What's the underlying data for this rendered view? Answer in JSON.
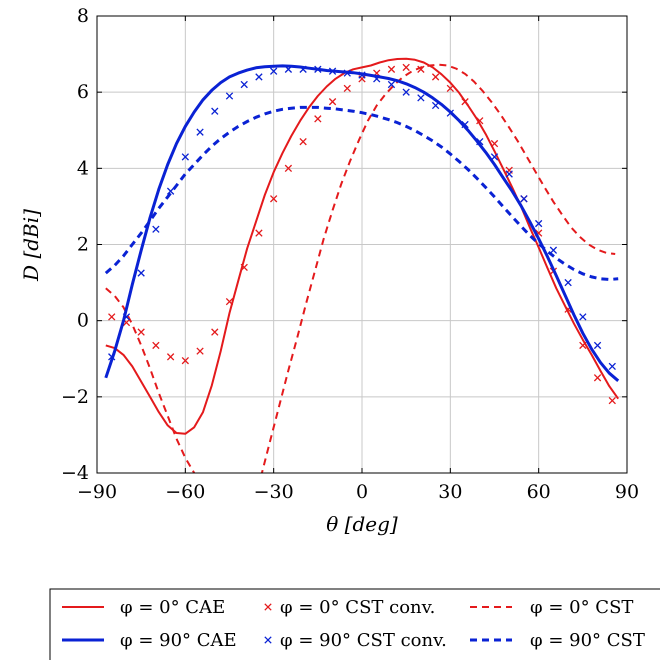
{
  "chart_data": {
    "type": "line",
    "xlabel": "θ [deg]",
    "ylabel": "D [dBi]",
    "xlim": [
      -90,
      90
    ],
    "ylim": [
      -4,
      8
    ],
    "xticks": [
      -90,
      -60,
      -30,
      0,
      30,
      60,
      90
    ],
    "yticks": [
      -4,
      -2,
      0,
      2,
      4,
      6,
      8
    ],
    "xtick_labels": [
      "−90",
      "−60",
      "−30",
      "0",
      "30",
      "60",
      "90"
    ],
    "ytick_labels": [
      "−4",
      "−2",
      "0",
      "2",
      "4",
      "6",
      "8"
    ],
    "grid": true,
    "legend_position": "bottom",
    "series": [
      {
        "name": "φ = 0° CAE",
        "style": "solid",
        "color": "#e41a1c",
        "width": 2,
        "x": [
          -87,
          -84,
          -81,
          -78,
          -75,
          -72,
          -69,
          -66,
          -63,
          -60,
          -57,
          -54,
          -51,
          -48,
          -45,
          -42,
          -39,
          -36,
          -33,
          -30,
          -27,
          -24,
          -21,
          -18,
          -15,
          -12,
          -9,
          -6,
          -3,
          0,
          3,
          6,
          9,
          12,
          15,
          18,
          21,
          24,
          27,
          30,
          33,
          36,
          39,
          42,
          45,
          48,
          51,
          54,
          57,
          60,
          63,
          66,
          69,
          72,
          75,
          78,
          81,
          84,
          87
        ],
        "y": [
          -0.65,
          -0.72,
          -0.9,
          -1.2,
          -1.6,
          -2.0,
          -2.4,
          -2.75,
          -2.95,
          -2.97,
          -2.8,
          -2.4,
          -1.7,
          -0.8,
          0.2,
          1.05,
          1.9,
          2.6,
          3.3,
          3.9,
          4.4,
          4.85,
          5.25,
          5.6,
          5.9,
          6.15,
          6.35,
          6.5,
          6.6,
          6.65,
          6.7,
          6.78,
          6.84,
          6.87,
          6.88,
          6.85,
          6.78,
          6.65,
          6.47,
          6.25,
          5.98,
          5.65,
          5.3,
          4.9,
          4.45,
          3.98,
          3.5,
          3.0,
          2.45,
          1.92,
          1.38,
          0.85,
          0.38,
          -0.08,
          -0.5,
          -0.9,
          -1.32,
          -1.72,
          -2.05
        ]
      },
      {
        "name": "φ = 0° CST conv.",
        "style": "marker",
        "color": "#e41a1c",
        "x": [
          -85,
          -80,
          -75,
          -70,
          -65,
          -60,
          -55,
          -50,
          -45,
          -40,
          -35,
          -30,
          -25,
          -20,
          -15,
          -10,
          -5,
          0,
          5,
          10,
          15,
          20,
          25,
          30,
          35,
          40,
          45,
          50,
          55,
          60,
          65,
          70,
          75,
          80,
          85
        ],
        "y": [
          0.1,
          -0.05,
          -0.3,
          -0.65,
          -0.95,
          -1.05,
          -0.8,
          -0.3,
          0.5,
          1.4,
          2.3,
          3.2,
          4.0,
          4.7,
          5.3,
          5.75,
          6.1,
          6.35,
          6.5,
          6.6,
          6.65,
          6.6,
          6.4,
          6.1,
          5.75,
          5.25,
          4.65,
          3.95,
          3.2,
          2.3,
          1.3,
          0.3,
          -0.65,
          -1.5,
          -2.1
        ]
      },
      {
        "name": "φ = 0° CST",
        "style": "dashed",
        "color": "#e41a1c",
        "width": 2,
        "x": [
          -87,
          -84,
          -81,
          -78,
          -75,
          -72,
          -69,
          -66,
          -63,
          -60,
          -57,
          -34,
          -31,
          -28,
          -25,
          -22,
          -19,
          -16,
          -13,
          -10,
          -7,
          -4,
          -1,
          2,
          5,
          8,
          11,
          14,
          17,
          20,
          23,
          26,
          29,
          32,
          35,
          38,
          41,
          44,
          47,
          50,
          53,
          56,
          59,
          62,
          65,
          68,
          71,
          74,
          77,
          80,
          83,
          86
        ],
        "y": [
          0.85,
          0.65,
          0.35,
          -0.1,
          -0.65,
          -1.25,
          -1.9,
          -2.5,
          -3.1,
          -3.6,
          -4.0,
          -4.0,
          -3.1,
          -2.2,
          -1.3,
          -0.45,
          0.45,
          1.3,
          2.15,
          2.9,
          3.6,
          4.2,
          4.75,
          5.25,
          5.65,
          5.95,
          6.2,
          6.4,
          6.55,
          6.65,
          6.7,
          6.72,
          6.7,
          6.62,
          6.48,
          6.28,
          6.03,
          5.74,
          5.42,
          5.07,
          4.7,
          4.3,
          3.9,
          3.5,
          3.12,
          2.78,
          2.45,
          2.2,
          2.0,
          1.86,
          1.78,
          1.75
        ]
      },
      {
        "name": "φ = 90° CAE",
        "style": "solid",
        "color": "#0a22d4",
        "width": 3,
        "x": [
          -87,
          -84,
          -81,
          -78,
          -75,
          -72,
          -69,
          -66,
          -63,
          -60,
          -57,
          -54,
          -51,
          -48,
          -45,
          -42,
          -39,
          -36,
          -33,
          -30,
          -27,
          -24,
          -21,
          -18,
          -15,
          -12,
          -9,
          -6,
          -3,
          0,
          3,
          6,
          9,
          12,
          15,
          18,
          21,
          24,
          27,
          30,
          33,
          36,
          39,
          42,
          45,
          48,
          51,
          54,
          57,
          60,
          63,
          66,
          69,
          72,
          75,
          78,
          81,
          84,
          87
        ],
        "y": [
          -1.5,
          -0.8,
          0.0,
          0.95,
          1.85,
          2.7,
          3.45,
          4.1,
          4.65,
          5.1,
          5.48,
          5.8,
          6.05,
          6.25,
          6.4,
          6.5,
          6.58,
          6.64,
          6.67,
          6.68,
          6.69,
          6.68,
          6.66,
          6.63,
          6.6,
          6.57,
          6.55,
          6.53,
          6.51,
          6.48,
          6.44,
          6.4,
          6.36,
          6.3,
          6.22,
          6.12,
          6.0,
          5.85,
          5.68,
          5.48,
          5.25,
          5.0,
          4.72,
          4.42,
          4.1,
          3.75,
          3.4,
          3.02,
          2.6,
          2.15,
          1.68,
          1.18,
          0.66,
          0.15,
          -0.33,
          -0.75,
          -1.1,
          -1.38,
          -1.58
        ]
      },
      {
        "name": "φ = 90° CST conv.",
        "style": "marker",
        "color": "#0a22d4",
        "x": [
          -85,
          -80,
          -75,
          -70,
          -65,
          -60,
          -55,
          -50,
          -45,
          -40,
          -35,
          -30,
          -25,
          -20,
          -15,
          -10,
          -5,
          0,
          5,
          10,
          15,
          20,
          25,
          30,
          35,
          40,
          45,
          50,
          55,
          60,
          65,
          70,
          75,
          80,
          85
        ],
        "y": [
          -0.95,
          0.1,
          1.25,
          2.4,
          3.4,
          4.3,
          4.95,
          5.5,
          5.9,
          6.2,
          6.4,
          6.55,
          6.6,
          6.6,
          6.6,
          6.55,
          6.5,
          6.45,
          6.35,
          6.2,
          6.0,
          5.85,
          5.65,
          5.45,
          5.15,
          4.7,
          4.3,
          3.85,
          3.2,
          2.55,
          1.85,
          1.0,
          0.1,
          -0.65,
          -1.2
        ]
      },
      {
        "name": "φ = 90° CST",
        "style": "dashed",
        "color": "#0a22d4",
        "width": 3,
        "x": [
          -87,
          -84,
          -81,
          -78,
          -75,
          -72,
          -69,
          -66,
          -63,
          -60,
          -57,
          -54,
          -51,
          -48,
          -45,
          -42,
          -39,
          -36,
          -33,
          -30,
          -27,
          -24,
          -21,
          -18,
          -15,
          -12,
          -9,
          -6,
          -3,
          0,
          3,
          6,
          9,
          12,
          15,
          18,
          21,
          24,
          27,
          30,
          33,
          36,
          39,
          42,
          45,
          48,
          51,
          54,
          57,
          60,
          63,
          66,
          69,
          72,
          75,
          78,
          81,
          84,
          87
        ],
        "y": [
          1.25,
          1.45,
          1.7,
          2.0,
          2.3,
          2.62,
          2.95,
          3.25,
          3.55,
          3.85,
          4.1,
          4.35,
          4.58,
          4.78,
          4.95,
          5.1,
          5.23,
          5.34,
          5.43,
          5.5,
          5.55,
          5.58,
          5.6,
          5.6,
          5.6,
          5.58,
          5.56,
          5.53,
          5.5,
          5.46,
          5.41,
          5.35,
          5.28,
          5.2,
          5.1,
          4.99,
          4.86,
          4.72,
          4.56,
          4.38,
          4.18,
          3.97,
          3.74,
          3.5,
          3.25,
          2.99,
          2.73,
          2.48,
          2.24,
          2.02,
          1.82,
          1.64,
          1.48,
          1.34,
          1.23,
          1.15,
          1.1,
          1.08,
          1.1
        ]
      }
    ]
  }
}
